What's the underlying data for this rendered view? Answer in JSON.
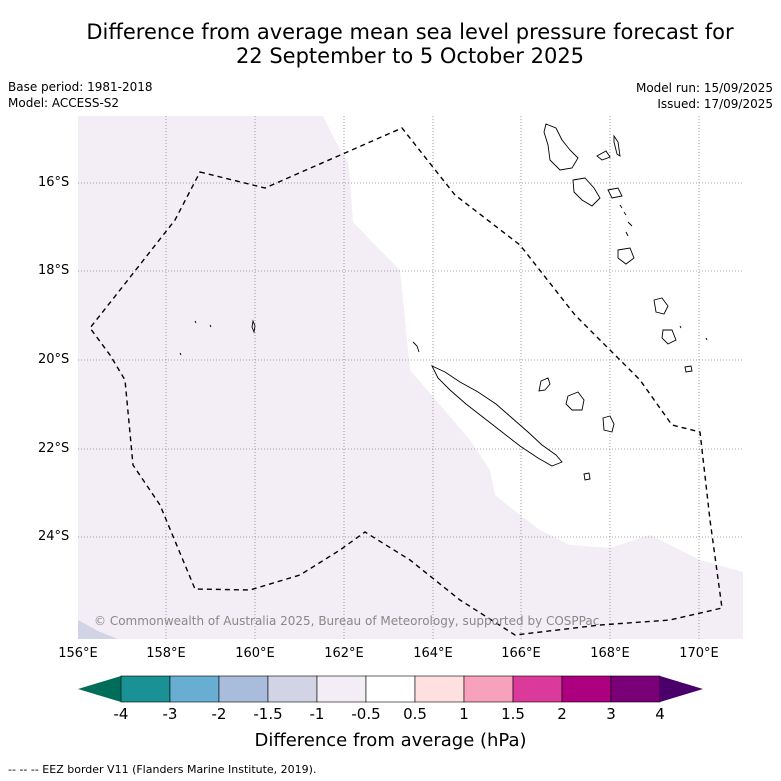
{
  "title": {
    "line1": "Difference from average mean sea level pressure forecast for",
    "line2": "22 September to 5 October 2025"
  },
  "meta": {
    "base_period": "Base period: 1981-2018",
    "model": "Model: ACCESS-S2",
    "model_run": "Model run: 15/09/2025",
    "issued": "Issued: 17/09/2025"
  },
  "map": {
    "lat_labels": [
      "16°S",
      "18°S",
      "20°S",
      "22°S",
      "24°S"
    ],
    "lon_labels": [
      "156°E",
      "158°E",
      "160°E",
      "162°E",
      "164°E",
      "166°E",
      "168°E",
      "170°E"
    ],
    "copyright": "© Commonwealth of Australia 2025, Bureau of Meteorology, supported by COSPPac",
    "colors": {
      "neg_0_5_to_neg_1": "#f3edf6",
      "neg_1_to_neg_1_5": "#d3d3e6",
      "neutral": "#ffffff",
      "eez_border": "#000000"
    }
  },
  "colorbar": {
    "title": "Difference from average (hPa)",
    "ticks": [
      "-4",
      "-3",
      "-2",
      "-1.5",
      "-1",
      "-0.5",
      "0.5",
      "1",
      "1.5",
      "2",
      "3",
      "4"
    ],
    "colors": [
      "#006d5b",
      "#1a9195",
      "#67aed2",
      "#a9bcdc",
      "#d3d3e6",
      "#f3edf6",
      "#ffffff",
      "#ffe0e0",
      "#f7a1bd",
      "#dc3a9a",
      "#ad0080",
      "#7a0077",
      "#49006a"
    ]
  },
  "footer": "-- -- -- EEZ border V11 (Flanders Marine Institute, 2019)."
}
